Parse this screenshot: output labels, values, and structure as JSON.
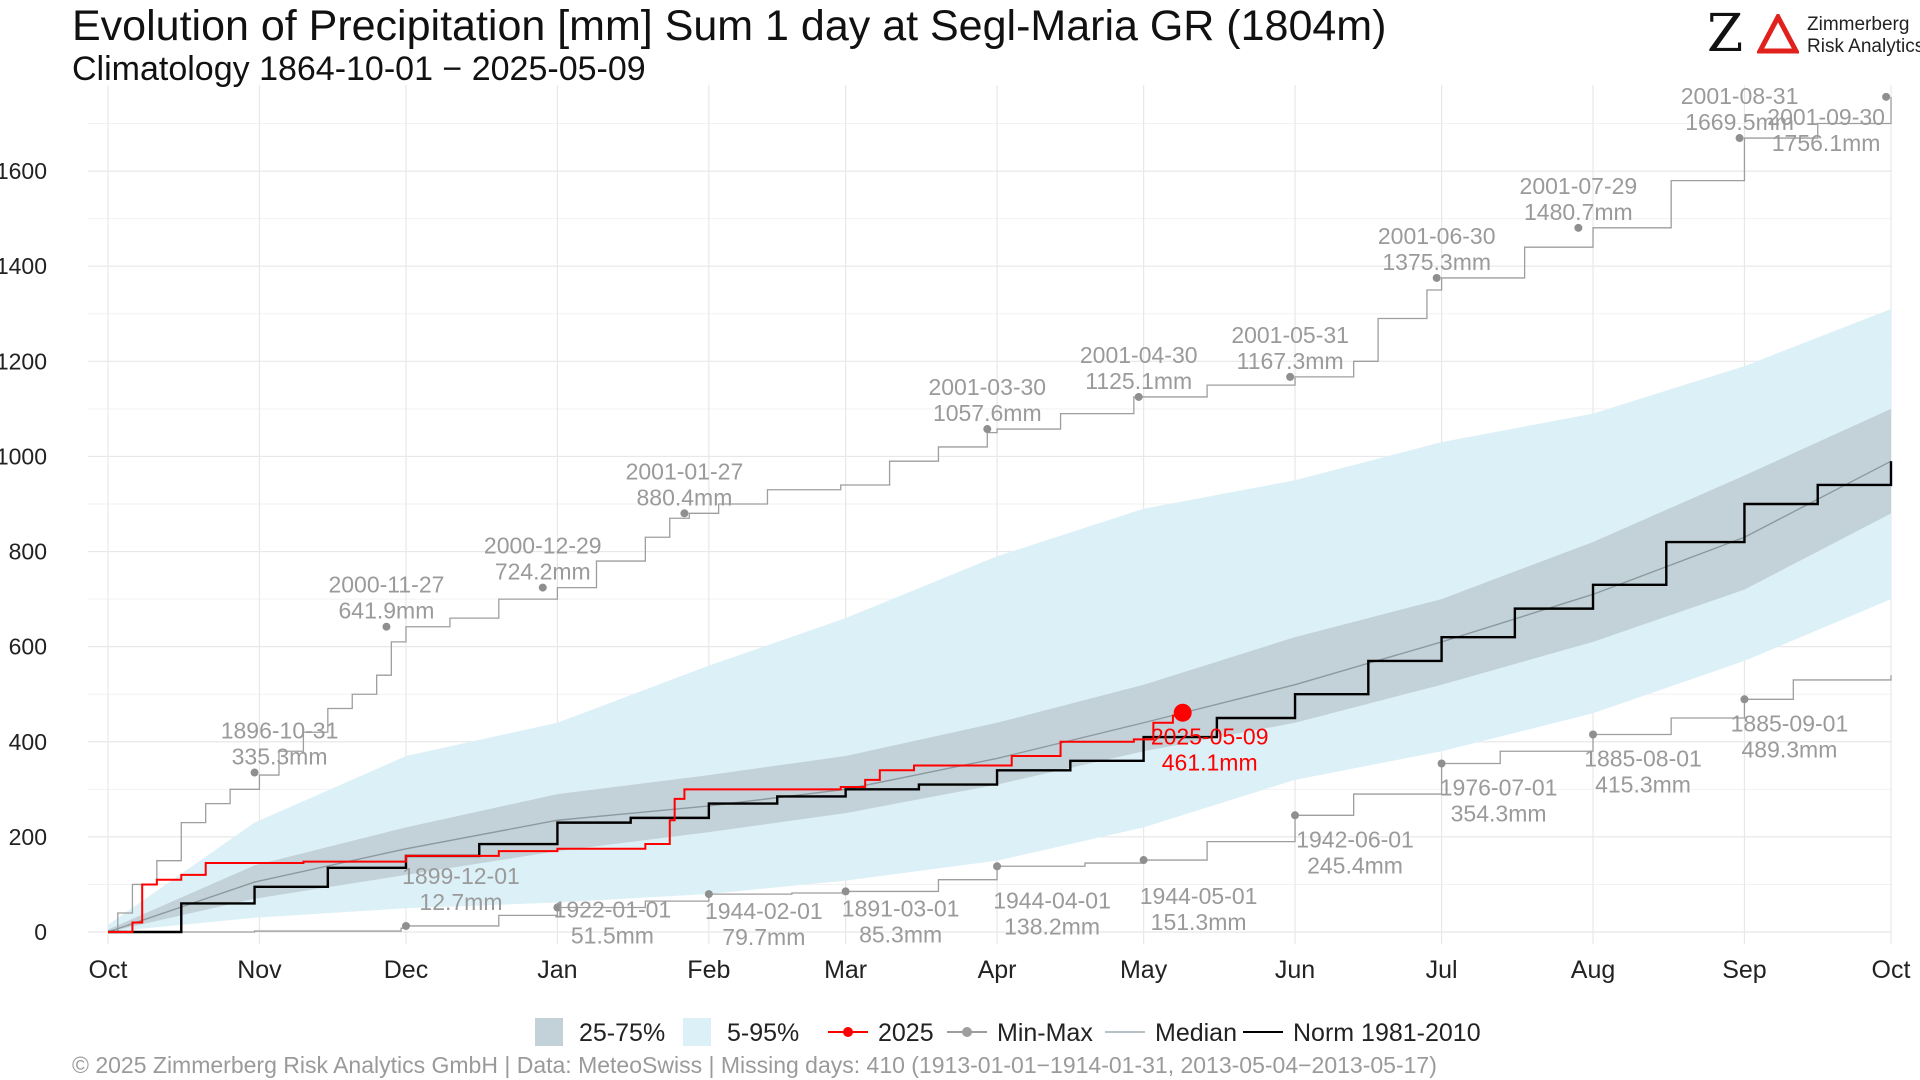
{
  "header": {
    "title": "Evolution of Precipitation [mm] Sum 1 day at Segl-Maria  GR (1804m)",
    "subtitle": "Climatology 1864-10-01 − 2025-05-09"
  },
  "logo": {
    "line1": "Zimmerberg",
    "line2": "Risk Analytics",
    "z": "Z"
  },
  "footer": "©  2025 Zimmerberg Risk Analytics GmbH | Data: MeteoSwiss | Missing days: 410 (1913-01-01−1914-01-31, 2013-05-04−2013-05-17)",
  "colors": {
    "band_25_75": "#c3d2d8",
    "band_5_95": "#dcf0f7",
    "current": "#ff0000",
    "minmax": "#9e9e9e",
    "median": "#8c9aa0",
    "norm": "#000000",
    "logo_red": "#e1211b"
  },
  "chart_data": {
    "type": "line",
    "title": "Evolution of Precipitation [mm] Sum 1 day at Segl-Maria  GR (1804m)",
    "ylim": [
      0,
      1760
    ],
    "yticks": [
      0,
      200,
      400,
      600,
      800,
      1000,
      1200,
      1400,
      1600
    ],
    "xticks": [
      {
        "label": "Oct",
        "day": 0
      },
      {
        "label": "Nov",
        "day": 31
      },
      {
        "label": "Dec",
        "day": 61
      },
      {
        "label": "Jan",
        "day": 92
      },
      {
        "label": "Feb",
        "day": 123
      },
      {
        "label": "Mar",
        "day": 151
      },
      {
        "label": "Apr",
        "day": 182
      },
      {
        "label": "May",
        "day": 212
      },
      {
        "label": "Jun",
        "day": 243
      },
      {
        "label": "Jul",
        "day": 273
      },
      {
        "label": "Aug",
        "day": 304
      },
      {
        "label": "Sep",
        "day": 335
      },
      {
        "label": "Oct",
        "day": 365
      }
    ],
    "legend": [
      {
        "label": "25-75%",
        "kind": "box",
        "color": "#c3d2d8"
      },
      {
        "label": "5-95%",
        "kind": "box",
        "color": "#dcf0f7"
      },
      {
        "label": "2025",
        "kind": "linepoint",
        "color": "#ff0000"
      },
      {
        "label": "Min-Max",
        "kind": "linepoint",
        "color": "#9e9e9e"
      },
      {
        "label": "Median",
        "kind": "line",
        "color": "#8c9aa0"
      },
      {
        "label": "Norm 1981-2010",
        "kind": "line",
        "color": "#000000"
      }
    ],
    "legend_position": "bottom",
    "grid": true,
    "series": [
      {
        "name": "5-95%",
        "kind": "band",
        "days": [
          0,
          30,
          61,
          92,
          123,
          151,
          182,
          212,
          243,
          273,
          304,
          335,
          365
        ],
        "low": [
          0,
          30,
          50,
          62,
          80,
          108,
          150,
          220,
          320,
          380,
          460,
          570,
          700
        ],
        "high": [
          15,
          230,
          370,
          440,
          560,
          660,
          790,
          890,
          950,
          1030,
          1090,
          1190,
          1310
        ]
      },
      {
        "name": "25-75%",
        "kind": "band",
        "days": [
          0,
          30,
          61,
          92,
          123,
          151,
          182,
          212,
          243,
          273,
          304,
          335,
          365
        ],
        "low": [
          0,
          70,
          120,
          170,
          210,
          250,
          310,
          380,
          440,
          520,
          610,
          720,
          880
        ],
        "high": [
          5,
          140,
          220,
          290,
          330,
          370,
          440,
          520,
          620,
          700,
          820,
          960,
          1100
        ]
      },
      {
        "name": "Median",
        "kind": "line",
        "days": [
          0,
          30,
          61,
          92,
          123,
          151,
          182,
          212,
          243,
          273,
          304,
          335,
          365
        ],
        "values": [
          0,
          105,
          175,
          235,
          265,
          300,
          365,
          440,
          520,
          610,
          710,
          830,
          990
        ]
      },
      {
        "name": "Norm 1981-2010",
        "kind": "line",
        "days": [
          0,
          15,
          30,
          45,
          61,
          76,
          92,
          107,
          123,
          137,
          151,
          166,
          182,
          197,
          212,
          227,
          243,
          258,
          273,
          288,
          304,
          319,
          335,
          350,
          365
        ],
        "values": [
          0,
          60,
          95,
          135,
          160,
          185,
          230,
          240,
          270,
          285,
          300,
          310,
          340,
          360,
          410,
          450,
          500,
          570,
          620,
          680,
          730,
          820,
          900,
          940,
          990
        ]
      },
      {
        "name": "2025",
        "kind": "line",
        "days": [
          0,
          5,
          7,
          10,
          15,
          20,
          40,
          61,
          80,
          92,
          110,
          115,
          116,
          118,
          124,
          150,
          155,
          158,
          165,
          182,
          185,
          195,
          210,
          214,
          218,
          220
        ],
        "values": [
          0,
          20,
          100,
          110,
          120,
          145,
          148,
          160,
          170,
          175,
          185,
          235,
          280,
          300,
          300,
          305,
          320,
          340,
          350,
          350,
          370,
          400,
          405,
          440,
          455,
          461.1
        ]
      },
      {
        "name": "Max",
        "kind": "line",
        "days": [
          0,
          2,
          5,
          10,
          15,
          20,
          25,
          31,
          35,
          40,
          45,
          50,
          55,
          58,
          61,
          70,
          80,
          92,
          100,
          110,
          115,
          119,
          125,
          135,
          150,
          160,
          170,
          180,
          182,
          195,
          210,
          225,
          243,
          255,
          260,
          270,
          273,
          290,
          304,
          320,
          335,
          350,
          365
        ],
        "values": [
          0,
          40,
          100,
          150,
          230,
          270,
          300,
          330,
          380,
          420,
          470,
          500,
          540,
          610,
          641.9,
          660,
          700,
          724.2,
          780,
          830,
          870,
          880.4,
          900,
          930,
          940,
          990,
          1020,
          1050,
          1057.6,
          1090,
          1125.1,
          1150,
          1167.3,
          1200,
          1290,
          1350,
          1375.3,
          1440,
          1480.7,
          1580,
          1669.5,
          1700,
          1756.1
        ]
      },
      {
        "name": "Min",
        "kind": "line",
        "days": [
          0,
          30,
          60,
          61,
          80,
          92,
          110,
          123,
          140,
          151,
          170,
          182,
          200,
          212,
          225,
          243,
          255,
          273,
          285,
          304,
          320,
          335,
          345,
          365
        ],
        "values": [
          0,
          2,
          8,
          12.7,
          35,
          51.5,
          65,
          79.7,
          82,
          85.3,
          110,
          138.2,
          145,
          151.3,
          190,
          245.4,
          290,
          354.3,
          380,
          415.3,
          450,
          489.3,
          530,
          540
        ]
      }
    ],
    "annotations": [
      {
        "date": "1896-10-31",
        "value": "335.3mm",
        "day": 30,
        "y": 335.3,
        "color": "gray"
      },
      {
        "date": "2000-11-27",
        "value": "641.9mm",
        "day": 57,
        "y": 641.9,
        "color": "gray"
      },
      {
        "date": "2000-12-29",
        "value": "724.2mm",
        "day": 89,
        "y": 724.2,
        "color": "gray"
      },
      {
        "date": "2001-01-27",
        "value": "880.4mm",
        "day": 118,
        "y": 880.4,
        "color": "gray"
      },
      {
        "date": "2001-03-30",
        "value": "1057.6mm",
        "day": 180,
        "y": 1057.6,
        "color": "gray"
      },
      {
        "date": "2001-04-30",
        "value": "1125.1mm",
        "day": 211,
        "y": 1125.1,
        "color": "gray"
      },
      {
        "date": "2001-05-31",
        "value": "1167.3mm",
        "day": 242,
        "y": 1167.3,
        "color": "gray"
      },
      {
        "date": "2001-06-30",
        "value": "1375.3mm",
        "day": 272,
        "y": 1375.3,
        "color": "gray"
      },
      {
        "date": "2001-07-29",
        "value": "1480.7mm",
        "day": 301,
        "y": 1480.7,
        "color": "gray"
      },
      {
        "date": "2001-08-31",
        "value": "1669.5mm",
        "day": 334,
        "y": 1669.5,
        "color": "gray"
      },
      {
        "date": "2001-09-30",
        "value": "1756.1mm",
        "day": 364,
        "y": 1756.1,
        "color": "gray"
      },
      {
        "date": "1899-12-01",
        "value": "12.7mm",
        "day": 61,
        "y": 12.7,
        "color": "gray"
      },
      {
        "date": "1922-01-01",
        "value": "51.5mm",
        "day": 92,
        "y": 51.5,
        "color": "gray"
      },
      {
        "date": "1944-02-01",
        "value": "79.7mm",
        "day": 123,
        "y": 79.7,
        "color": "gray"
      },
      {
        "date": "1891-03-01",
        "value": "85.3mm",
        "day": 151,
        "y": 85.3,
        "color": "gray"
      },
      {
        "date": "1944-04-01",
        "value": "138.2mm",
        "day": 182,
        "y": 138.2,
        "color": "gray"
      },
      {
        "date": "1944-05-01",
        "value": "151.3mm",
        "day": 212,
        "y": 151.3,
        "color": "gray"
      },
      {
        "date": "1942-06-01",
        "value": "245.4mm",
        "day": 243,
        "y": 245.4,
        "color": "gray"
      },
      {
        "date": "1976-07-01",
        "value": "354.3mm",
        "day": 273,
        "y": 354.3,
        "color": "gray"
      },
      {
        "date": "1885-08-01",
        "value": "415.3mm",
        "day": 304,
        "y": 415.3,
        "color": "gray"
      },
      {
        "date": "1885-09-01",
        "value": "489.3mm",
        "day": 335,
        "y": 489.3,
        "color": "gray"
      },
      {
        "date": "2025-05-09",
        "value": "461.1mm",
        "day": 220,
        "y": 461.1,
        "color": "red"
      }
    ]
  }
}
